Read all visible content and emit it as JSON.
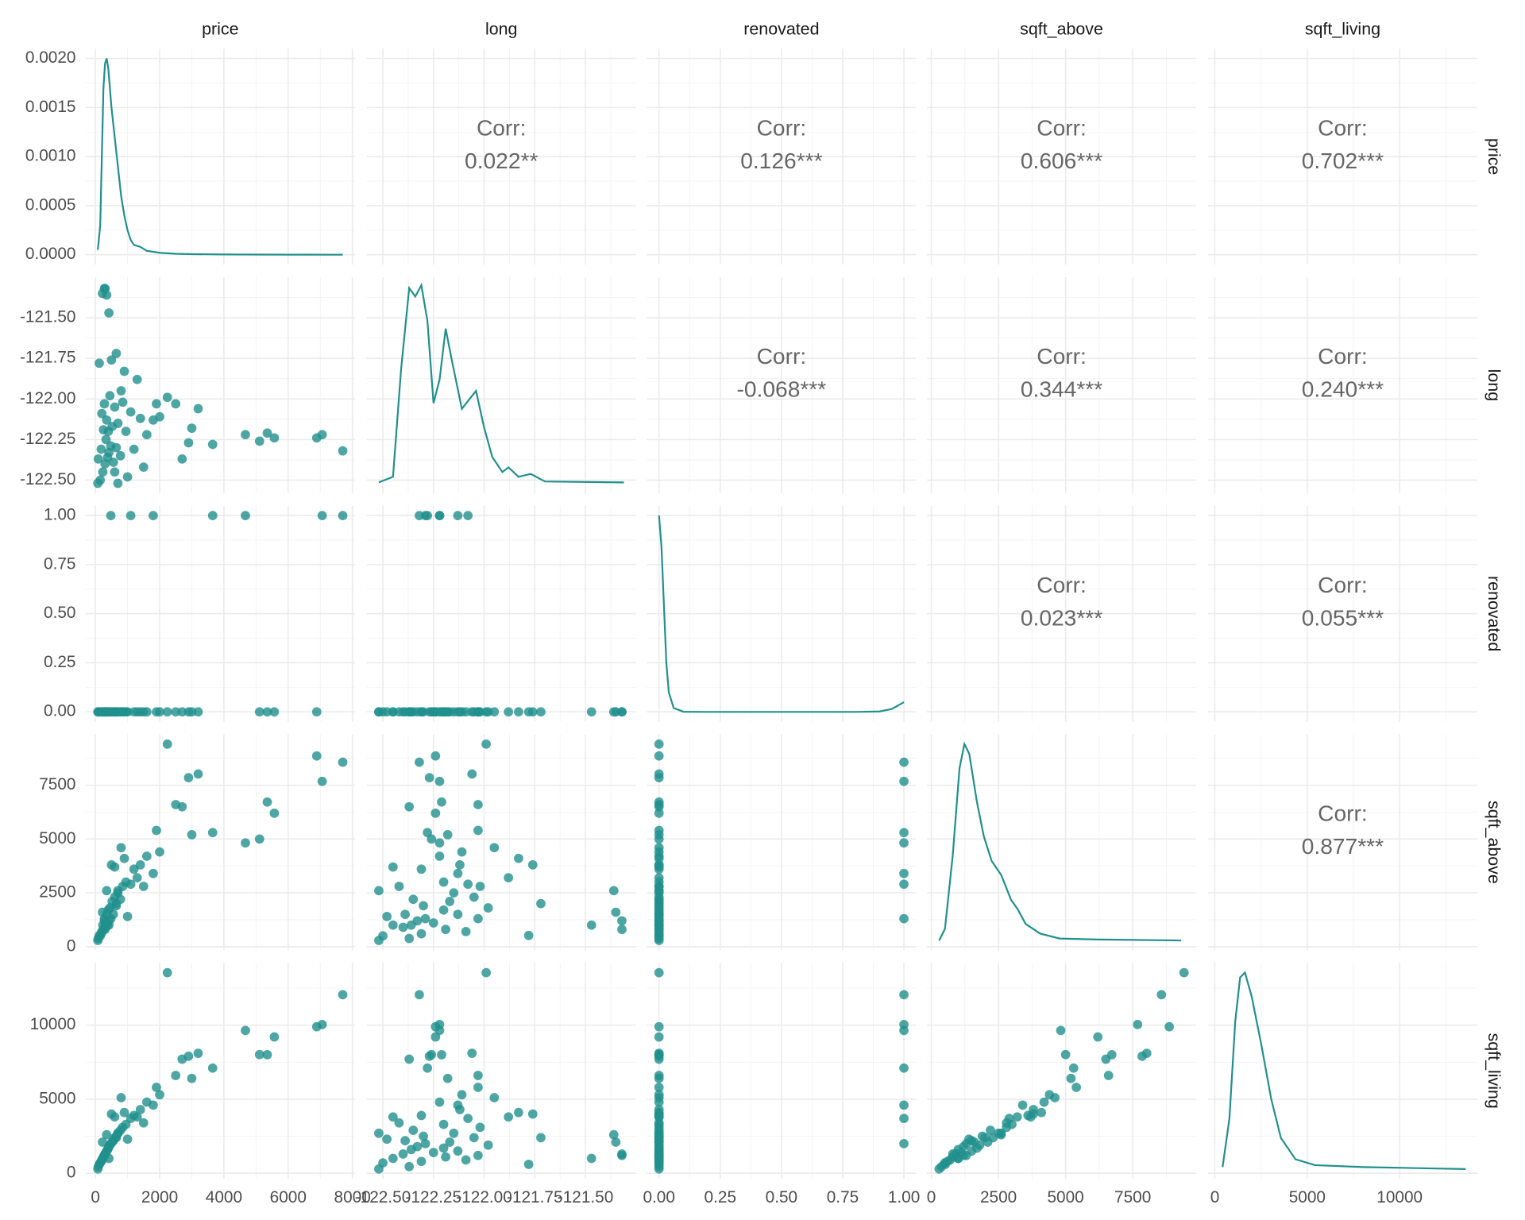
{
  "chart_data": {
    "type": "pairs",
    "color": "#21908C",
    "grid": true,
    "corr_title": "Corr:",
    "variables": [
      {
        "name": "price",
        "lim": [
          -306,
          8081
        ],
        "ticks": [
          0,
          2000,
          4000,
          6000,
          8000
        ],
        "values": [
          7700,
          7060,
          6890,
          5570,
          5350,
          5110,
          4670,
          2240,
          3200,
          2900,
          3650,
          2700,
          3000,
          2500,
          1900,
          2000,
          1600,
          1400,
          1200,
          1100,
          950,
          850,
          780,
          700,
          650,
          600,
          560,
          520,
          480,
          450,
          420,
          400,
          380,
          350,
          330,
          300,
          280,
          250,
          230,
          200,
          180,
          150,
          120,
          90,
          75,
          280,
          350,
          420,
          220,
          300,
          650,
          500,
          900,
          1300,
          800,
          1800,
          600,
          700,
          1000,
          1500
        ],
        "density": {
          "ylim": [
            -0.0001,
            0.0021
          ],
          "yticks": [
            {
              "value": 0,
              "label": "0.0000"
            },
            {
              "value": 0.0005,
              "label": "0.0005"
            },
            {
              "value": 0.001,
              "label": "0.0010"
            },
            {
              "value": 0.0015,
              "label": "0.0015"
            },
            {
              "value": 0.002,
              "label": "0.0020"
            }
          ],
          "x": [
            75,
            150,
            200,
            250,
            300,
            350,
            400,
            450,
            500,
            600,
            700,
            800,
            900,
            1000,
            1100,
            1200,
            1400,
            1600,
            2000,
            2500,
            3000,
            4000,
            5000,
            6000,
            7700
          ],
          "y": [
            5e-05,
            0.0003,
            0.001,
            0.0017,
            0.00195,
            0.002,
            0.0019,
            0.0017,
            0.0015,
            0.0012,
            0.0009,
            0.0006,
            0.0004,
            0.00025,
            0.00015,
            0.0001,
            8e-05,
            4e-05,
            2e-05,
            1e-05,
            6e-06,
            3e-06,
            2e-06,
            1e-06,
            0
          ]
        }
      },
      {
        "name": "long",
        "lim": [
          -122.58,
          -121.25
        ],
        "ticks": [
          {
            "value": -122.5,
            "label": "-122.50"
          },
          {
            "value": -122.25,
            "label": "-122.25"
          },
          {
            "value": -122,
            "label": "-122.00"
          },
          {
            "value": -121.75,
            "label": "-121.75"
          },
          {
            "value": -121.5,
            "label": "-121.50"
          }
        ],
        "values": [
          -122.32,
          -122.22,
          -122.24,
          -122.24,
          -122.21,
          -122.26,
          -122.22,
          -121.99,
          -122.06,
          -122.27,
          -122.28,
          -122.37,
          -122.18,
          -122.03,
          -122.03,
          -122.11,
          -122.22,
          -122.12,
          -122.31,
          -122.08,
          -122.2,
          -122.02,
          -122.35,
          -122.15,
          -122.3,
          -122.05,
          -122.39,
          -122.17,
          -122.29,
          -121.98,
          -122.33,
          -122.2,
          -122.36,
          -122.13,
          -122.25,
          -122.4,
          -122.03,
          -122.19,
          -122.45,
          -122.09,
          -122.31,
          -122.5,
          -121.78,
          -122.37,
          -122.52,
          -121.32,
          -121.36,
          -121.47,
          -121.35,
          -121.32,
          -121.72,
          -121.76,
          -121.83,
          -121.88,
          -121.95,
          -122.13,
          -122.45,
          -122.52,
          -122.48,
          -122.42
        ],
        "density": {
          "ylim": [
            -0.113,
            2.175
          ],
          "x": [
            -122.52,
            -122.45,
            -122.41,
            -122.37,
            -122.34,
            -122.31,
            -122.28,
            -122.25,
            -122.22,
            -122.19,
            -122.16,
            -122.11,
            -122.07,
            -122.04,
            -122,
            -121.96,
            -121.91,
            -121.88,
            -121.83,
            -121.77,
            -121.7,
            -121.31
          ],
          "y": [
            0,
            0.06,
            1.2,
            2.06,
            1.97,
            2.09,
            1.71,
            0.84,
            1.09,
            1.63,
            1.3,
            0.78,
            0.89,
            0.97,
            0.58,
            0.27,
            0.11,
            0.16,
            0.06,
            0.09,
            0.01,
            0
          ]
        }
      },
      {
        "name": "renovated",
        "lim": [
          -0.05,
          1.05
        ],
        "ticks": [
          {
            "value": 0,
            "label": "0.00"
          },
          {
            "value": 0.25,
            "label": "0.25"
          },
          {
            "value": 0.5,
            "label": "0.50"
          },
          {
            "value": 0.75,
            "label": "0.75"
          },
          {
            "value": 1,
            "label": "1.00"
          }
        ],
        "values": [
          1,
          1,
          0,
          0,
          0,
          0,
          1,
          0,
          0,
          0,
          1,
          0,
          0,
          0,
          0,
          0,
          0,
          0,
          0,
          1,
          0,
          0,
          0,
          0,
          0,
          0,
          0,
          0,
          1,
          0,
          0,
          0,
          0,
          0,
          0,
          0,
          0,
          0,
          0,
          0,
          0,
          0,
          0,
          0,
          0,
          0,
          0,
          0,
          0,
          0,
          0,
          0,
          0,
          0,
          0,
          1,
          0,
          0,
          0,
          0
        ],
        "density": {
          "ylim": [
            -1,
            21.2
          ],
          "x": [
            0,
            0.01,
            0.02,
            0.03,
            0.04,
            0.06,
            0.1,
            0.2,
            0.8,
            0.9,
            0.95,
            1
          ],
          "y": [
            20.2,
            17,
            11,
            5,
            2,
            0.4,
            0.02,
            0,
            0,
            0.05,
            0.3,
            1
          ]
        }
      },
      {
        "name": "sqft_above",
        "lim": [
          -166,
          9866
        ],
        "ticks": [
          0,
          2500,
          5000,
          7500
        ],
        "values": [
          8570,
          7680,
          8860,
          6200,
          6720,
          5000,
          4820,
          9410,
          8020,
          7850,
          5300,
          6500,
          5200,
          6600,
          5400,
          4400,
          4200,
          3800,
          3600,
          2900,
          3000,
          2800,
          2200,
          2500,
          1900,
          2300,
          1500,
          2100,
          1300,
          1800,
          1200,
          1700,
          1000,
          1500,
          1100,
          900,
          1300,
          800,
          1000,
          700,
          600,
          500,
          520,
          380,
          290,
          1200,
          2600,
          1000,
          1600,
          800,
          2000,
          3800,
          4100,
          3200,
          4600,
          3400,
          3700,
          2600,
          1400,
          2800
        ],
        "density": {
          "ylim": [
            -2.7e-05,
            0.000572
          ],
          "x": [
            290,
            507,
            796,
            1050,
            1231,
            1412,
            1701,
            1955,
            2244,
            2606,
            2968,
            3222,
            3511,
            4054,
            4778,
            6226,
            9303
          ],
          "y": [
            0,
            3.2e-05,
            0.000235,
            0.000478,
            0.000545,
            0.000518,
            0.000383,
            0.000289,
            0.000221,
            0.000181,
            0.000113,
            8.6e-05,
            4.6e-05,
            1.9e-05,
            5.4e-06,
            2.7e-06,
            0
          ]
        }
      },
      {
        "name": "sqft_living",
        "lim": [
          -372,
          14202
        ],
        "ticks": [
          0,
          5000,
          10000
        ],
        "values": [
          12050,
          10040,
          9890,
          9200,
          8000,
          8010,
          9640,
          13540,
          8100,
          7900,
          7100,
          7700,
          6400,
          6600,
          5800,
          5300,
          4800,
          4300,
          3900,
          3700,
          3300,
          3100,
          2900,
          2700,
          2500,
          2400,
          2200,
          2100,
          2000,
          1900,
          1800,
          1700,
          1600,
          1500,
          1400,
          1300,
          1200,
          1100,
          1000,
          900,
          800,
          700,
          600,
          450,
          290,
          1200,
          2600,
          1000,
          2100,
          1300,
          2400,
          4000,
          4100,
          3800,
          5100,
          4600,
          3800,
          2700,
          2300,
          3400
        ],
        "density": {
          "ylim": [
            -2.2e-05,
            0.000466
          ],
          "x": [
            420,
            789,
            1105,
            1368,
            1631,
            2000,
            2525,
            3051,
            3577,
            4366,
            5418,
            8048,
            13571
          ],
          "y": [
            4.4e-06,
            0.000114,
            0.000334,
            0.000433,
            0.000444,
            0.000389,
            0.000279,
            0.000158,
            7e-05,
            2.2e-05,
            8.8e-06,
            4.4e-06,
            0
          ]
        }
      }
    ],
    "corr": [
      [
        null,
        {
          "value": 0.022,
          "label": "0.022**"
        },
        {
          "value": 0.126,
          "label": "0.126***"
        },
        {
          "value": 0.606,
          "label": "0.606***"
        },
        {
          "value": 0.702,
          "label": "0.702***"
        }
      ],
      [
        null,
        null,
        {
          "value": -0.068,
          "label": "-0.068***"
        },
        {
          "value": 0.344,
          "label": "0.344***"
        },
        {
          "value": 0.24,
          "label": "0.240***"
        }
      ],
      [
        null,
        null,
        null,
        {
          "value": 0.023,
          "label": "0.023***"
        },
        {
          "value": 0.055,
          "label": "0.055***"
        }
      ],
      [
        null,
        null,
        null,
        null,
        {
          "value": 0.877,
          "label": "0.877***"
        }
      ],
      [
        null,
        null,
        null,
        null,
        null
      ]
    ]
  }
}
